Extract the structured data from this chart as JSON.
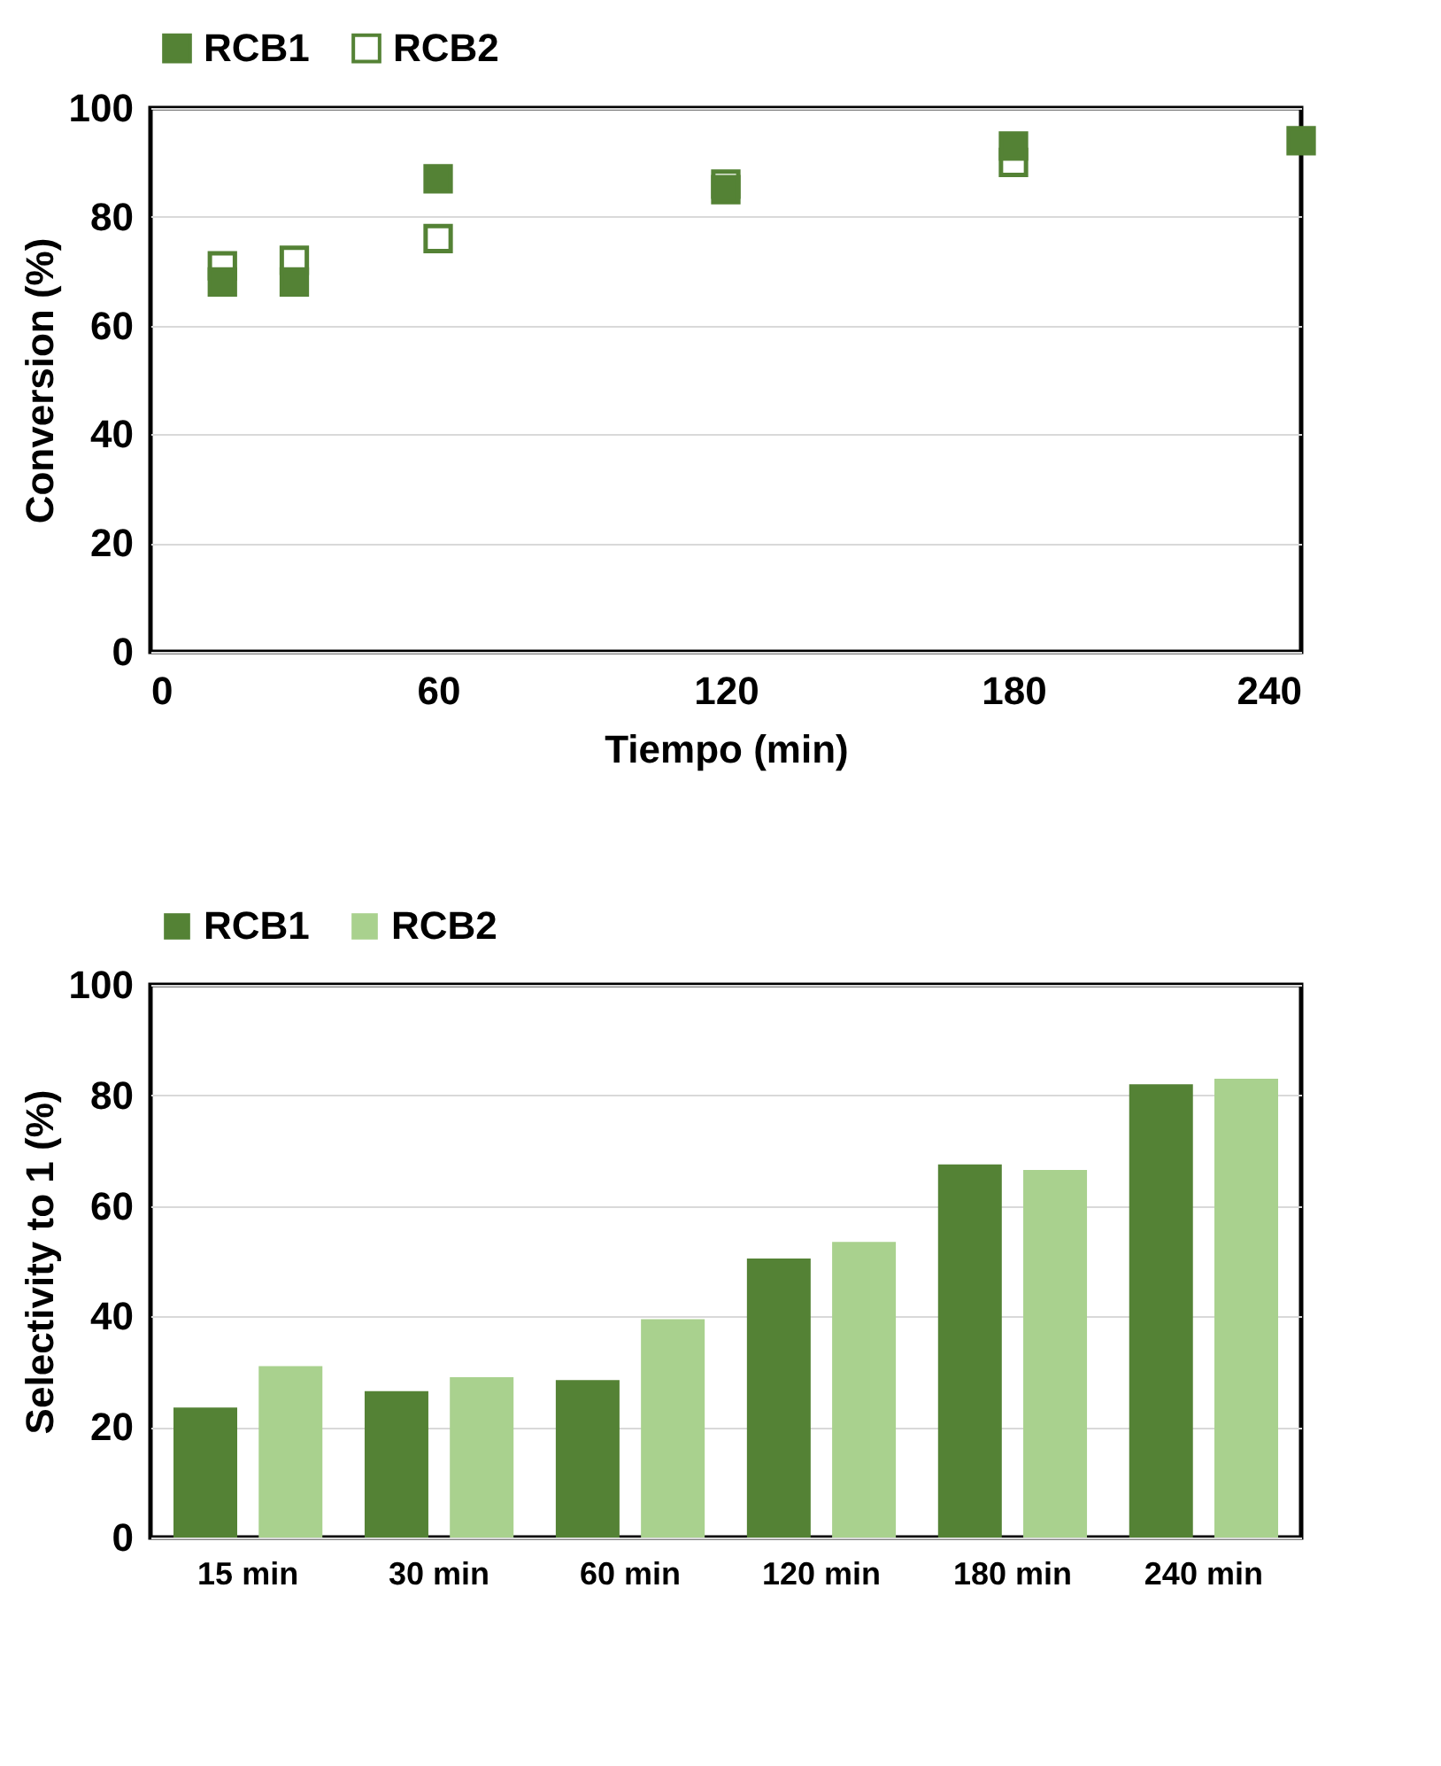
{
  "chart_data": [
    {
      "type": "scatter",
      "xlabel": "Tiempo (min)",
      "ylabel": "Conversion (%)",
      "x": [
        15,
        30,
        60,
        120,
        180,
        240
      ],
      "series": [
        {
          "name": "RCB1",
          "color": "#548235",
          "marker": "square",
          "values": [
            68,
            68,
            87,
            85,
            93,
            94
          ]
        },
        {
          "name": "RCB2",
          "color": "#548235",
          "marker": "square",
          "values": [
            71,
            72,
            76,
            86,
            90,
            null
          ]
        }
      ],
      "xlim": [
        0,
        240
      ],
      "xticks": [
        0,
        60,
        120,
        180,
        240
      ],
      "ylim": [
        0,
        100
      ],
      "yticks": [
        0,
        20,
        40,
        60,
        80,
        100
      ],
      "grid": "y",
      "legend": "top"
    },
    {
      "type": "bar",
      "ylabel": "Selectivity to 1 (%)",
      "categories": [
        "15 min",
        "30 min",
        "60 min",
        "120 min",
        "180 min",
        "240 min"
      ],
      "series": [
        {
          "name": "RCB1",
          "color": "#548235",
          "values": [
            23.5,
            26.5,
            28.5,
            50.5,
            67.5,
            82
          ]
        },
        {
          "name": "RCB2",
          "color": "#a9d18e",
          "values": [
            31,
            29,
            39.5,
            53.5,
            66.5,
            83
          ]
        }
      ],
      "ylim": [
        0,
        100
      ],
      "yticks": [
        0,
        20,
        40,
        60,
        80,
        100
      ],
      "grid": "y",
      "legend": "top"
    }
  ]
}
